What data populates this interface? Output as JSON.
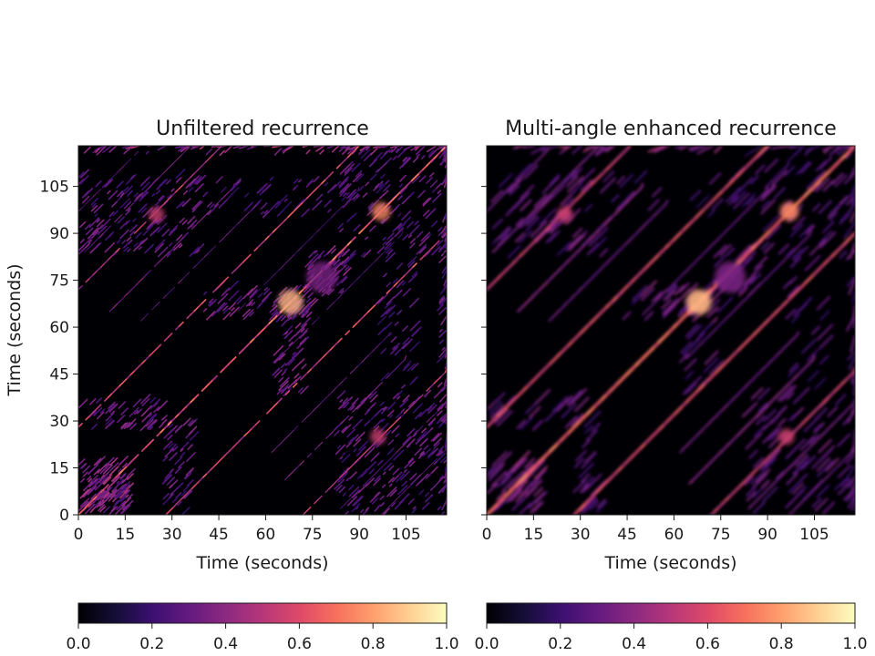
{
  "chart_data": [
    {
      "type": "heatmap",
      "title": "Unfiltered recurrence",
      "xlabel": "Time (seconds)",
      "ylabel": "Time (seconds)",
      "xlim": [
        0,
        118
      ],
      "ylim": [
        0,
        118
      ],
      "xticks": [
        0,
        15,
        30,
        45,
        60,
        75,
        90,
        105
      ],
      "yticks": [
        0,
        15,
        30,
        45,
        60,
        75,
        90,
        105
      ],
      "colormap": "magma",
      "style": "unfiltered",
      "colorbar": {
        "range": [
          0.0,
          1.0
        ],
        "ticks": [
          "0.0",
          "0.2",
          "0.4",
          "0.6",
          "0.8",
          "1.0"
        ]
      }
    },
    {
      "type": "heatmap",
      "title": "Multi-angle enhanced recurrence",
      "xlabel": "Time (seconds)",
      "ylabel": "",
      "xlim": [
        0,
        118
      ],
      "ylim": [
        0,
        118
      ],
      "xticks": [
        0,
        15,
        30,
        45,
        60,
        75,
        90,
        105
      ],
      "yticks": [
        0,
        15,
        30,
        45,
        60,
        75,
        90,
        105
      ],
      "colormap": "magma",
      "style": "enhanced",
      "colorbar": {
        "range": [
          0.0,
          1.0
        ],
        "ticks": [
          "0.0",
          "0.2",
          "0.4",
          "0.6",
          "0.8",
          "1.0"
        ]
      }
    }
  ]
}
